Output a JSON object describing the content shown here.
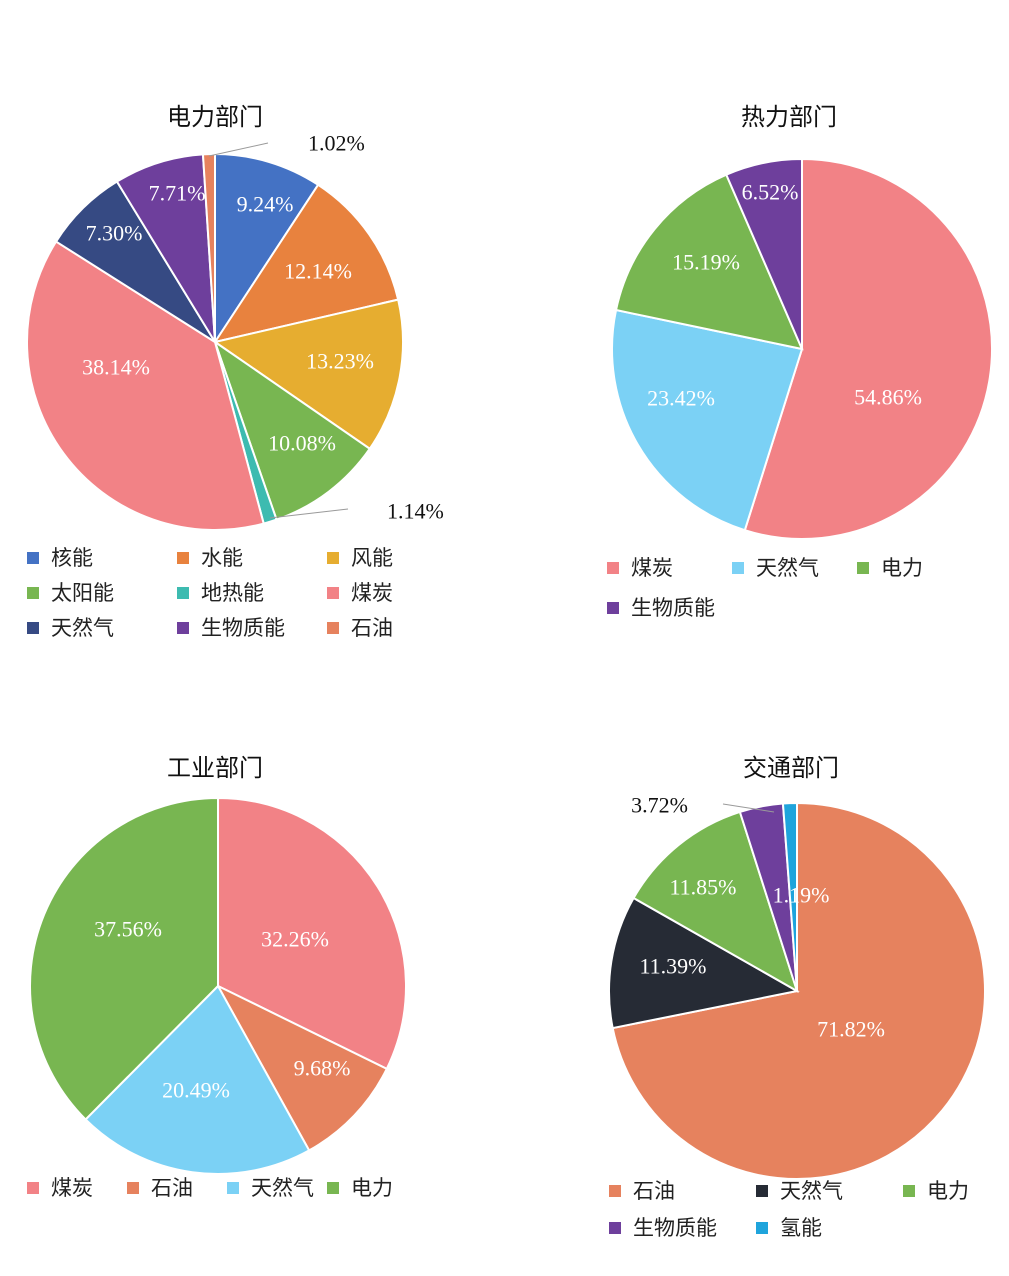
{
  "colors": {
    "nuclear": "#4472C4",
    "hydro": "#E8823E",
    "wind": "#E6AD30",
    "solar": "#78B651",
    "geothermal": "#3DBBB0",
    "coal": "#F28286",
    "natural_gas_power": "#364A83",
    "biomass": "#6E3F9C",
    "oil": "#E6825E",
    "natural_gas_light": "#7BD1F5",
    "natural_gas_dark": "#262B35",
    "hydrogen": "#1FA4DC"
  },
  "chart_data": [
    {
      "type": "pie",
      "title": "电力部门",
      "slices": [
        {
          "label": "核能",
          "value": 9.24,
          "display": "9.24%",
          "color": "#4472C4",
          "label_inside": true
        },
        {
          "label": "水能",
          "value": 12.14,
          "display": "12.14%",
          "color": "#E8823E",
          "label_inside": true
        },
        {
          "label": "风能",
          "value": 13.23,
          "display": "13.23%",
          "color": "#E6AD30",
          "label_inside": true
        },
        {
          "label": "太阳能",
          "value": 10.08,
          "display": "10.08%",
          "color": "#78B651",
          "label_inside": true
        },
        {
          "label": "地热能",
          "value": 1.14,
          "display": "1.14%",
          "color": "#3DBBB0",
          "label_inside": false
        },
        {
          "label": "煤炭",
          "value": 38.14,
          "display": "38.14%",
          "color": "#F28286",
          "label_inside": true
        },
        {
          "label": "天然气",
          "value": 7.3,
          "display": "7.30%",
          "color": "#364A83",
          "label_inside": true
        },
        {
          "label": "生物质能",
          "value": 7.71,
          "display": "7.71%",
          "color": "#6E3F9C",
          "label_inside": true
        },
        {
          "label": "石油",
          "value": 1.02,
          "display": "1.02%",
          "color": "#E6825E",
          "label_inside": false
        }
      ],
      "legend": [
        "核能",
        "水能",
        "风能",
        "太阳能",
        "地热能",
        "煤炭",
        "天然气",
        "生物质能",
        "石油"
      ]
    },
    {
      "type": "pie",
      "title": "热力部门",
      "slices": [
        {
          "label": "煤炭",
          "value": 54.86,
          "display": "54.86%",
          "color": "#F28286",
          "label_inside": true
        },
        {
          "label": "天然气",
          "value": 23.42,
          "display": "23.42%",
          "color": "#7BD1F5",
          "label_inside": true
        },
        {
          "label": "电力",
          "value": 15.19,
          "display": "15.19%",
          "color": "#78B651",
          "label_inside": true
        },
        {
          "label": "生物质能",
          "value": 6.52,
          "display": "6.52%",
          "color": "#6E3F9C",
          "label_inside": true
        }
      ],
      "legend": [
        "煤炭",
        "天然气",
        "电力",
        "生物质能"
      ]
    },
    {
      "type": "pie",
      "title": "工业部门",
      "slices": [
        {
          "label": "煤炭",
          "value": 32.26,
          "display": "32.26%",
          "color": "#F28286",
          "label_inside": true
        },
        {
          "label": "石油",
          "value": 9.68,
          "display": "9.68%",
          "color": "#E6825E",
          "label_inside": true
        },
        {
          "label": "天然气",
          "value": 20.49,
          "display": "20.49%",
          "color": "#7BD1F5",
          "label_inside": true
        },
        {
          "label": "电力",
          "value": 37.56,
          "display": "37.56%",
          "color": "#78B651",
          "label_inside": true
        }
      ],
      "legend": [
        "煤炭",
        "石油",
        "天然气",
        "电力"
      ]
    },
    {
      "type": "pie",
      "title": "交通部门",
      "slices": [
        {
          "label": "石油",
          "value": 71.82,
          "display": "71.82%",
          "color": "#E6825E",
          "label_inside": true
        },
        {
          "label": "天然气",
          "value": 11.39,
          "display": "11.39%",
          "color": "#262B35",
          "label_inside": true
        },
        {
          "label": "电力",
          "value": 11.85,
          "display": "11.85%",
          "color": "#78B651",
          "label_inside": true
        },
        {
          "label": "生物质能",
          "value": 3.72,
          "display": "3.72%",
          "color": "#6E3F9C",
          "label_inside": false
        },
        {
          "label": "氢能",
          "value": 1.19,
          "display": "1.19%",
          "color": "#1FA4DC",
          "label_inside": true
        }
      ],
      "legend": [
        "石油",
        "天然气",
        "电力",
        "生物质能",
        "氢能"
      ]
    }
  ]
}
